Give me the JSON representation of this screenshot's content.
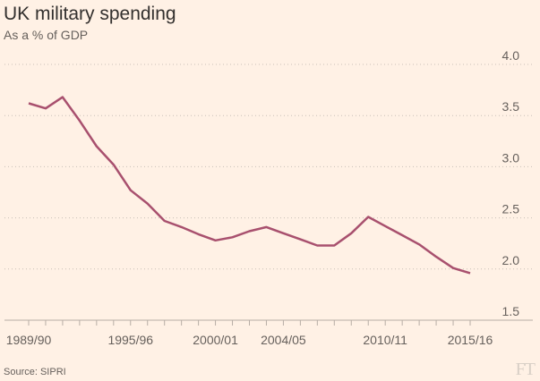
{
  "chart_data": {
    "type": "line",
    "title": "UK military spending",
    "subtitle": "As a % of GDP",
    "source": "Source: SIPRI",
    "logo": "FT",
    "ylim": [
      1.5,
      4.0
    ],
    "yticks": [
      "4.0",
      "3.5",
      "3.0",
      "2.5",
      "2.0",
      "1.5"
    ],
    "xtick_labels": [
      "1989/90",
      "1995/96",
      "2000/01",
      "2004/05",
      "2010/11",
      "2015/16"
    ],
    "xtick_index": [
      0,
      6,
      11,
      15,
      21,
      26
    ],
    "grid": true,
    "line_color": "#a8506e",
    "series": [
      {
        "values": [
          3.62,
          3.57,
          3.68,
          3.45,
          3.2,
          3.02,
          2.77,
          2.64,
          2.47,
          2.41,
          2.34,
          2.28,
          2.31,
          2.37,
          2.41,
          2.35,
          2.29,
          2.23,
          2.23,
          2.35,
          2.51,
          2.42,
          2.33,
          2.24,
          2.12,
          2.01,
          1.96
        ]
      }
    ]
  }
}
